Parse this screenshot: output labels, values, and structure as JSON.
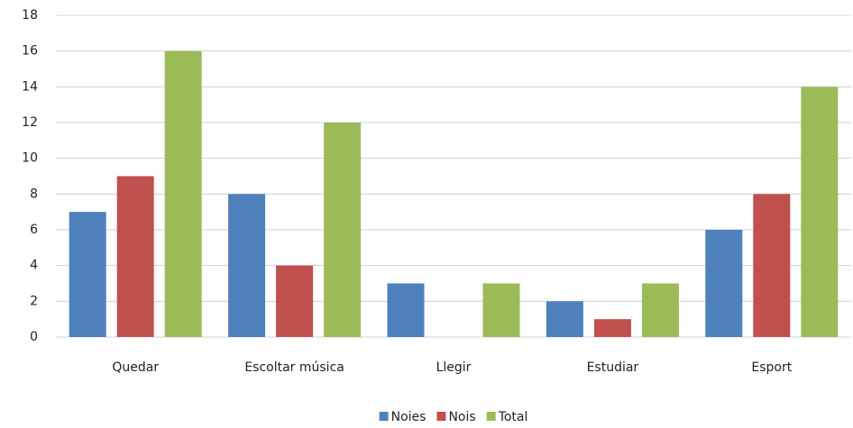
{
  "chart_data": {
    "type": "bar",
    "categories": [
      "Quedar",
      "Escoltar música",
      "Llegir",
      "Estudiar",
      "Esport"
    ],
    "series": [
      {
        "name": "Noies",
        "color": "#4f81bd",
        "values": [
          7,
          8,
          3,
          2,
          6
        ]
      },
      {
        "name": "Nois",
        "color": "#c0504d",
        "values": [
          9,
          4,
          0,
          1,
          8
        ]
      },
      {
        "name": "Total",
        "color": "#9bbb59",
        "values": [
          16,
          12,
          3,
          3,
          14
        ]
      }
    ],
    "ylim": [
      0,
      18
    ],
    "yticks": [
      0,
      2,
      4,
      6,
      8,
      10,
      12,
      14,
      16,
      18
    ],
    "grid": true,
    "legend": "bottom"
  }
}
